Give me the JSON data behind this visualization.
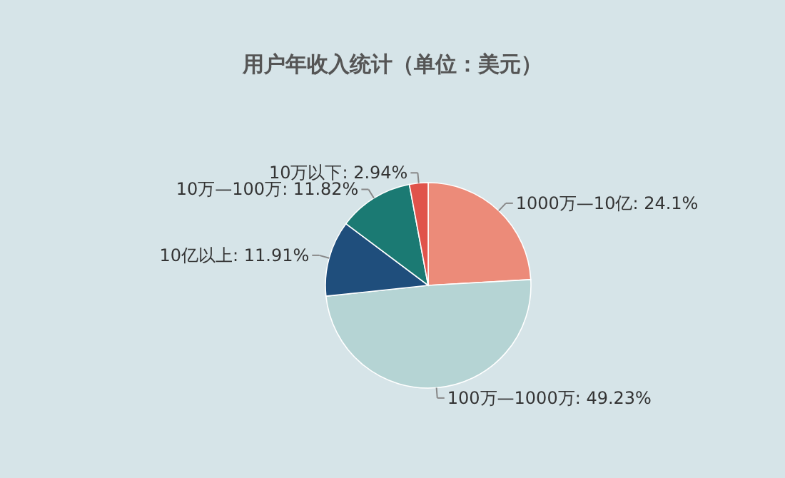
{
  "chart_data": {
    "type": "pie",
    "title": "用户年收入统计（单位：美元）",
    "categories": [
      "1000万—10亿",
      "100万—1000万",
      "10亿以上",
      "10万—100万",
      "10万以下"
    ],
    "values": [
      24.1,
      49.23,
      11.91,
      11.82,
      2.94
    ],
    "colors": [
      "#ec8b79",
      "#b5d4d4",
      "#1f4e7c",
      "#1b7a73",
      "#e0534b"
    ],
    "value_labels": [
      "24.1%",
      "49.23%",
      "11.91%",
      "11.82%",
      "2.94%"
    ],
    "data_labels": true
  }
}
